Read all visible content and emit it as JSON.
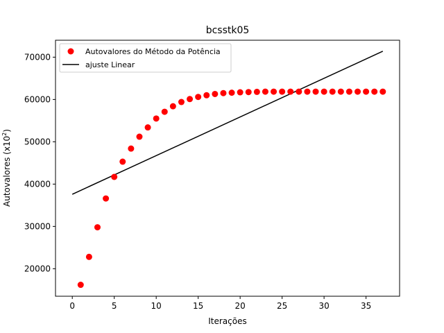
{
  "chart_data": {
    "type": "scatter",
    "title": "bcsstk05",
    "xlabel": "Iterações",
    "ylabel_prefix": "Autovalores (x10",
    "ylabel_sup": "2",
    "ylabel_suffix": ")",
    "xlim": [
      -2,
      39
    ],
    "ylim": [
      13500,
      74000
    ],
    "xticks": [
      0,
      5,
      10,
      15,
      20,
      25,
      30,
      35
    ],
    "yticks": [
      20000,
      30000,
      40000,
      50000,
      60000,
      70000
    ],
    "legend_position": "top-left",
    "grid": false,
    "series": [
      {
        "name": "Autovalores do Método da Potência",
        "kind": "scatter",
        "color": "#ff0000",
        "x": [
          1,
          2,
          3,
          4,
          5,
          6,
          7,
          8,
          9,
          10,
          11,
          12,
          13,
          14,
          15,
          16,
          17,
          18,
          19,
          20,
          21,
          22,
          23,
          24,
          25,
          26,
          27,
          28,
          29,
          30,
          31,
          32,
          33,
          34,
          35,
          36,
          37
        ],
        "y": [
          16200,
          22800,
          29800,
          36600,
          41700,
          45300,
          48400,
          51200,
          53400,
          55500,
          57100,
          58400,
          59400,
          60100,
          60600,
          61000,
          61300,
          61500,
          61600,
          61700,
          61750,
          61800,
          61850,
          61850,
          61850,
          61850,
          61850,
          61850,
          61850,
          61850,
          61850,
          61850,
          61850,
          61850,
          61850,
          61850,
          61850
        ]
      },
      {
        "name": "ajuste Linear",
        "kind": "line",
        "color": "#000000",
        "x": [
          0,
          37
        ],
        "y": [
          37600,
          71400
        ]
      }
    ]
  }
}
